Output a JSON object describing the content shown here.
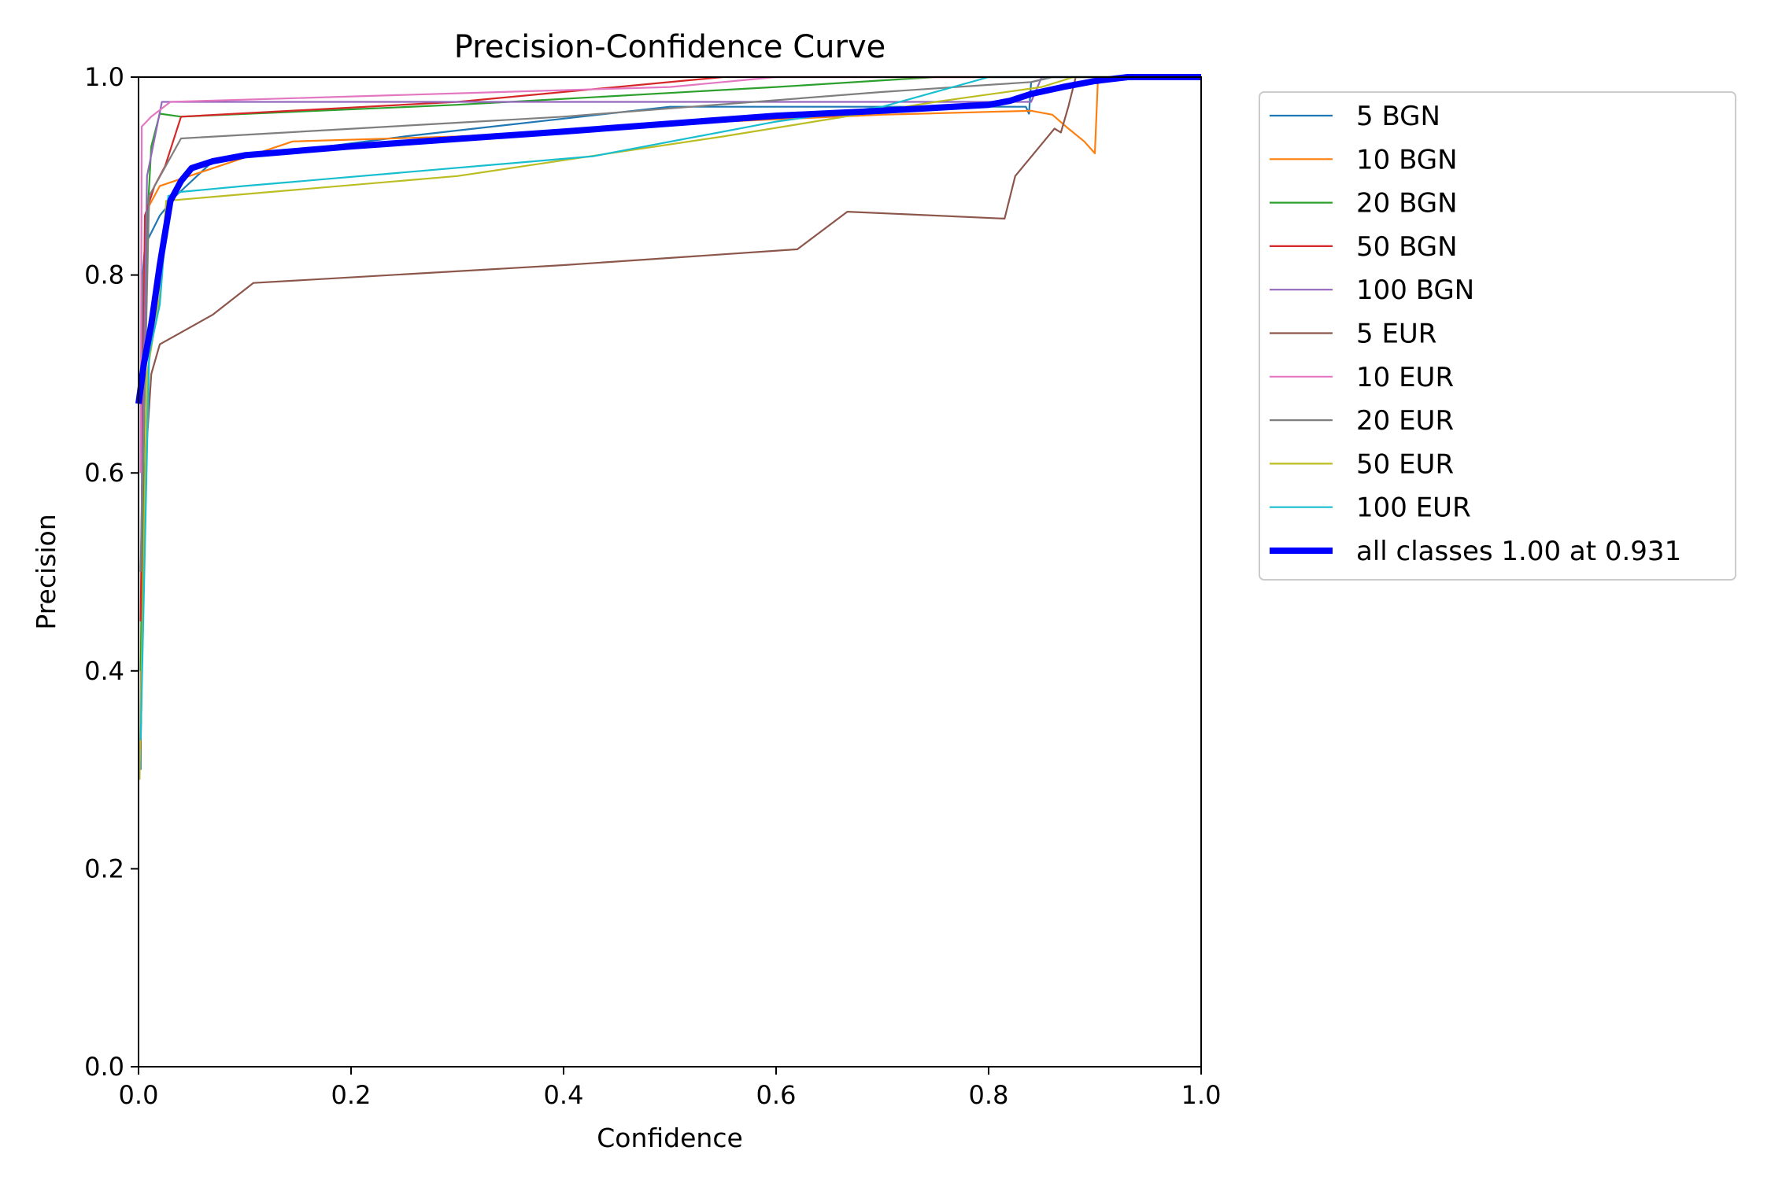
{
  "chart_data": {
    "type": "line",
    "title": "Precision-Confidence Curve",
    "xlabel": "Confidence",
    "ylabel": "Precision",
    "xlim": [
      0,
      1
    ],
    "ylim": [
      0,
      1
    ],
    "xticks": [
      "0.0",
      "0.2",
      "0.4",
      "0.6",
      "0.8",
      "1.0"
    ],
    "yticks": [
      "0.0",
      "0.2",
      "0.4",
      "0.6",
      "0.8",
      "1.0"
    ],
    "grid": false,
    "legend": "outside-right-top",
    "series": [
      {
        "name": "5 BGN",
        "color": "#1f77b4",
        "points": [
          [
            0.002,
            0.3
          ],
          [
            0.004,
            0.8
          ],
          [
            0.006,
            0.83
          ],
          [
            0.02,
            0.86
          ],
          [
            0.035,
            0.88
          ],
          [
            0.07,
            0.915
          ],
          [
            0.25,
            0.94
          ],
          [
            0.5,
            0.97
          ],
          [
            0.7,
            0.97
          ],
          [
            0.835,
            0.97
          ],
          [
            0.838,
            0.963
          ],
          [
            0.84,
            0.995
          ],
          [
            0.86,
            1.0
          ],
          [
            1.0,
            1.0
          ]
        ]
      },
      {
        "name": "10 BGN",
        "color": "#ff7f0e",
        "points": [
          [
            0.002,
            0.35
          ],
          [
            0.005,
            0.8
          ],
          [
            0.01,
            0.87
          ],
          [
            0.02,
            0.89
          ],
          [
            0.145,
            0.935
          ],
          [
            0.3,
            0.94
          ],
          [
            0.55,
            0.955
          ],
          [
            0.7,
            0.962
          ],
          [
            0.84,
            0.966
          ],
          [
            0.86,
            0.962
          ],
          [
            0.875,
            0.948
          ],
          [
            0.89,
            0.935
          ],
          [
            0.9,
            0.923
          ],
          [
            0.903,
            1.0
          ],
          [
            1.0,
            1.0
          ]
        ]
      },
      {
        "name": "20 BGN",
        "color": "#2ca02c",
        "points": [
          [
            0.002,
            0.4
          ],
          [
            0.008,
            0.85
          ],
          [
            0.012,
            0.93
          ],
          [
            0.02,
            0.963
          ],
          [
            0.04,
            0.96
          ],
          [
            0.3,
            0.972
          ],
          [
            0.6,
            0.99
          ],
          [
            0.75,
            1.0
          ],
          [
            1.0,
            1.0
          ]
        ]
      },
      {
        "name": "50 BGN",
        "color": "#d62728",
        "points": [
          [
            0.002,
            0.45
          ],
          [
            0.006,
            0.86
          ],
          [
            0.015,
            0.89
          ],
          [
            0.025,
            0.91
          ],
          [
            0.04,
            0.96
          ],
          [
            0.3,
            0.975
          ],
          [
            0.55,
            1.0
          ],
          [
            1.0,
            1.0
          ]
        ]
      },
      {
        "name": "100 BGN",
        "color": "#9467bd",
        "points": [
          [
            0.002,
            0.5
          ],
          [
            0.008,
            0.9
          ],
          [
            0.022,
            0.975
          ],
          [
            0.5,
            0.975
          ],
          [
            0.75,
            0.975
          ],
          [
            0.84,
            0.975
          ],
          [
            0.85,
            1.0
          ],
          [
            1.0,
            1.0
          ]
        ]
      },
      {
        "name": "5 EUR",
        "color": "#8c564b",
        "points": [
          [
            0.002,
            0.32
          ],
          [
            0.006,
            0.6
          ],
          [
            0.012,
            0.7
          ],
          [
            0.02,
            0.73
          ],
          [
            0.07,
            0.76
          ],
          [
            0.108,
            0.792
          ],
          [
            0.4,
            0.81
          ],
          [
            0.62,
            0.826
          ],
          [
            0.667,
            0.864
          ],
          [
            0.815,
            0.857
          ],
          [
            0.825,
            0.9
          ],
          [
            0.862,
            0.948
          ],
          [
            0.868,
            0.944
          ],
          [
            0.875,
            0.97
          ],
          [
            0.882,
            1.0
          ],
          [
            1.0,
            1.0
          ]
        ]
      },
      {
        "name": "10 EUR",
        "color": "#e377c2",
        "points": [
          [
            0.002,
            0.6
          ],
          [
            0.003,
            0.95
          ],
          [
            0.012,
            0.96
          ],
          [
            0.03,
            0.975
          ],
          [
            0.5,
            0.99
          ],
          [
            0.6,
            1.0
          ],
          [
            1.0,
            1.0
          ]
        ]
      },
      {
        "name": "20 EUR",
        "color": "#7f7f7f",
        "points": [
          [
            0.002,
            0.5
          ],
          [
            0.01,
            0.88
          ],
          [
            0.04,
            0.938
          ],
          [
            0.4,
            0.96
          ],
          [
            0.7,
            0.985
          ],
          [
            0.84,
            0.995
          ],
          [
            0.86,
            1.0
          ],
          [
            1.0,
            1.0
          ]
        ]
      },
      {
        "name": "50 EUR",
        "color": "#bcbd22",
        "points": [
          [
            0.001,
            0.29
          ],
          [
            0.008,
            0.7
          ],
          [
            0.02,
            0.78
          ],
          [
            0.026,
            0.875
          ],
          [
            0.3,
            0.9
          ],
          [
            0.55,
            0.94
          ],
          [
            0.75,
            0.975
          ],
          [
            0.85,
            0.99
          ],
          [
            0.88,
            1.0
          ],
          [
            1.0,
            1.0
          ]
        ]
      },
      {
        "name": "100 EUR",
        "color": "#17becf",
        "points": [
          [
            0.002,
            0.33
          ],
          [
            0.01,
            0.72
          ],
          [
            0.02,
            0.77
          ],
          [
            0.028,
            0.88
          ],
          [
            0.04,
            0.884
          ],
          [
            0.1,
            0.89
          ],
          [
            0.428,
            0.92
          ],
          [
            0.6,
            0.955
          ],
          [
            0.7,
            0.97
          ],
          [
            0.8,
            1.0
          ],
          [
            1.0,
            1.0
          ]
        ]
      },
      {
        "name": "all classes 1.00 at 0.931",
        "color": "#0000ff",
        "points": [
          [
            0.0,
            0.67
          ],
          [
            0.005,
            0.71
          ],
          [
            0.012,
            0.75
          ],
          [
            0.02,
            0.81
          ],
          [
            0.03,
            0.875
          ],
          [
            0.04,
            0.895
          ],
          [
            0.05,
            0.908
          ],
          [
            0.07,
            0.915
          ],
          [
            0.1,
            0.921
          ],
          [
            0.2,
            0.93
          ],
          [
            0.4,
            0.945
          ],
          [
            0.6,
            0.961
          ],
          [
            0.7,
            0.966
          ],
          [
            0.8,
            0.972
          ],
          [
            0.82,
            0.976
          ],
          [
            0.84,
            0.983
          ],
          [
            0.87,
            0.99
          ],
          [
            0.9,
            0.996
          ],
          [
            0.931,
            1.0
          ],
          [
            1.0,
            1.0
          ]
        ]
      }
    ]
  }
}
